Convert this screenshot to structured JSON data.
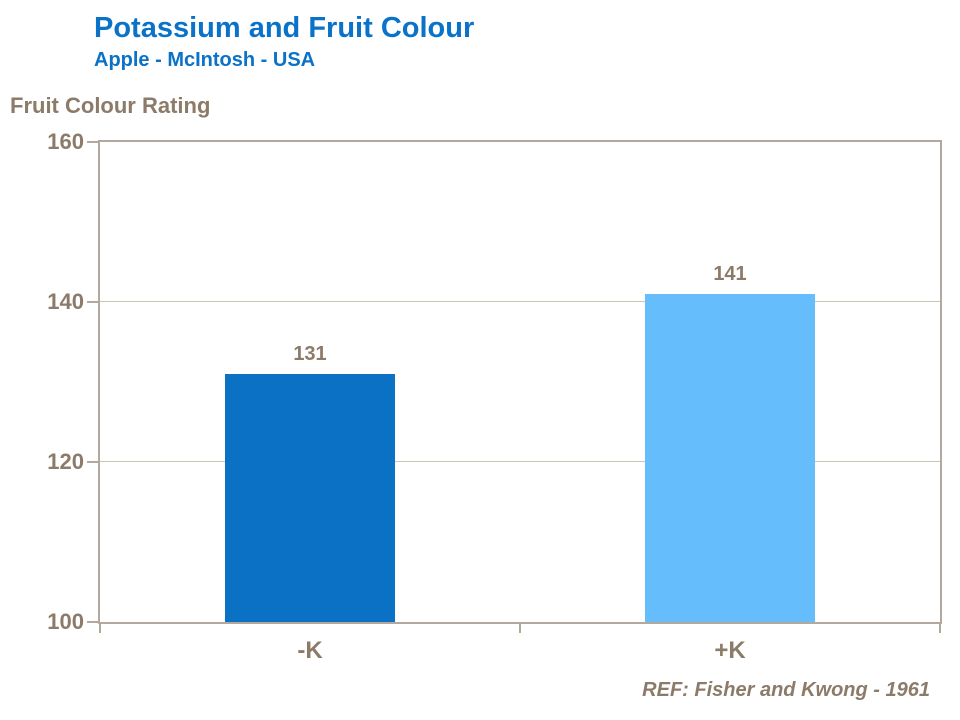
{
  "header": {
    "title": "Potassium and Fruit Colour",
    "subtitle": "Apple - McIntosh - USA"
  },
  "chart_data": {
    "type": "bar",
    "title": "Potassium and Fruit Colour",
    "subtitle": "Apple - McIntosh - USA",
    "xlabel": "",
    "ylabel": "Fruit Colour Rating",
    "categories": [
      "-K",
      "+K"
    ],
    "values": [
      131,
      141
    ],
    "data_labels": [
      "131",
      "141"
    ],
    "ylim": [
      100,
      160
    ],
    "yticks": [
      100,
      120,
      140,
      160
    ],
    "grid": "horizontal",
    "legend": "none",
    "bar_colors": [
      "#0a71c5",
      "#66bdfc"
    ]
  },
  "footer": {
    "reference": "REF: Fisher and Kwong - 1961"
  },
  "colors": {
    "title_blue": "#0a72c8",
    "text_brown": "#8c7b69",
    "axis_line": "#b2a89d",
    "gridline": "#ccc3b7",
    "bar_dark": "#0a71c5",
    "bar_light": "#66bdfc",
    "background": "#ffffff"
  }
}
